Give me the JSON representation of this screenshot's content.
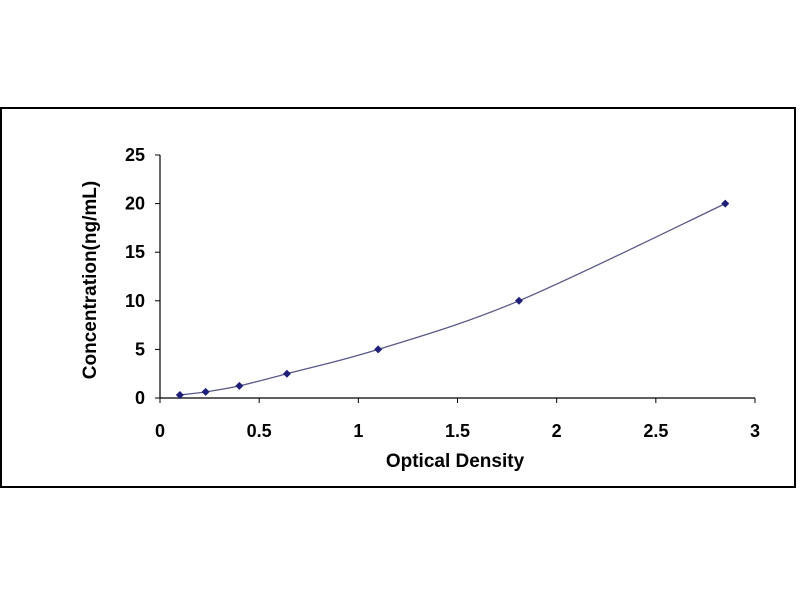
{
  "chart_data": {
    "type": "scatter",
    "title": "",
    "xlabel": "Optical Density",
    "ylabel": "Concentration(ng/mL)",
    "xlim": [
      0,
      3
    ],
    "ylim": [
      0,
      25
    ],
    "x_ticks": [
      "0",
      "0.5",
      "1",
      "1.5",
      "2",
      "2.5",
      "3"
    ],
    "y_ticks": [
      "0",
      "5",
      "10",
      "15",
      "20",
      "25"
    ],
    "grid": false,
    "legend": "none",
    "fit_line": true,
    "series": [
      {
        "x": [
          0.1,
          0.23,
          0.4,
          0.64,
          1.1,
          1.81,
          2.85
        ],
        "y": [
          0.31,
          0.63,
          1.25,
          2.5,
          5,
          10,
          20
        ]
      }
    ],
    "colors": {
      "marker": "#1f1f7a",
      "curve": "#5a5a8a",
      "axis": "#000000",
      "frame": "#000000"
    }
  }
}
